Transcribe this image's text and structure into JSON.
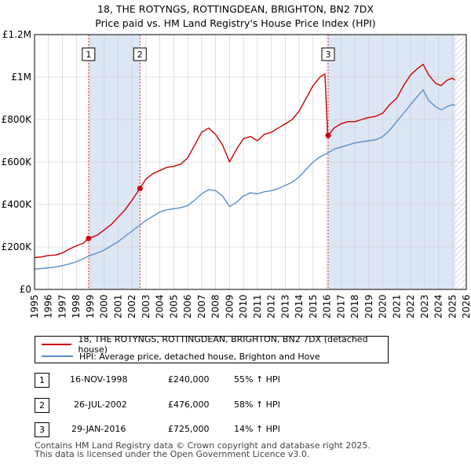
{
  "title": {
    "line1": "18, THE ROTYNGS, ROTTINGDEAN, BRIGHTON, BN2 7DX",
    "line2": "Price paid vs. HM Land Registry's House Price Index (HPI)"
  },
  "legend": {
    "property": "18, THE ROTYNGS, ROTTINGDEAN, BRIGHTON, BN2 7DX (detached house)",
    "hpi": "HPI: Average price, detached house, Brighton and Hove"
  },
  "transactions": [
    {
      "num": "1",
      "date": "16-NOV-1998",
      "price": "£240,000",
      "hpi": "55% ↑ HPI"
    },
    {
      "num": "2",
      "date": "26-JUL-2002",
      "price": "£476,000",
      "hpi": "58% ↑ HPI"
    },
    {
      "num": "3",
      "date": "29-JAN-2016",
      "price": "£725,000",
      "hpi": "14% ↑ HPI"
    }
  ],
  "footer": {
    "line1": "Contains HM Land Registry data © Crown copyright and database right 2025.",
    "line2": "This data is licensed under the Open Government Licence v3.0."
  },
  "colors": {
    "property": "#cc0000",
    "hpi": "#5b8fc7",
    "shade": "#dde6f5",
    "grid": "#cccccc"
  },
  "chart_data": {
    "type": "line",
    "title": "18, THE ROTYNGS, ROTTINGDEAN, BRIGHTON, BN2 7DX",
    "xlabel": "",
    "ylabel": "",
    "xlim": [
      1995,
      2026
    ],
    "ylim": [
      0,
      1200000
    ],
    "x_ticks": [
      1995,
      1996,
      1997,
      1998,
      1999,
      2000,
      2001,
      2002,
      2003,
      2004,
      2005,
      2006,
      2007,
      2008,
      2009,
      2010,
      2011,
      2012,
      2013,
      2014,
      2015,
      2016,
      2017,
      2018,
      2019,
      2020,
      2021,
      2022,
      2023,
      2024,
      2025,
      2026
    ],
    "y_ticks": [
      {
        "value": 0,
        "label": "£0"
      },
      {
        "value": 200000,
        "label": "£200K"
      },
      {
        "value": 400000,
        "label": "£400K"
      },
      {
        "value": 600000,
        "label": "£600K"
      },
      {
        "value": 800000,
        "label": "£800K"
      },
      {
        "value": 1000000,
        "label": "£1M"
      },
      {
        "value": 1200000,
        "label": "£1.2M"
      }
    ],
    "shaded_ranges": [
      [
        1998.88,
        2002.57
      ],
      [
        2016.08,
        2025.2
      ]
    ],
    "hatched_from": 2025.2,
    "sale_markers": [
      {
        "label": "1",
        "x": 1998.88,
        "y": 240000
      },
      {
        "label": "2",
        "x": 2002.57,
        "y": 476000
      },
      {
        "label": "3",
        "x": 2016.08,
        "y": 725000
      }
    ],
    "series": [
      {
        "name": "18, THE ROTYNGS, ROTTINGDEAN, BRIGHTON, BN2 7DX (detached house)",
        "color": "#cc0000",
        "points": [
          [
            1995.0,
            150000
          ],
          [
            1995.5,
            153000
          ],
          [
            1996.0,
            160000
          ],
          [
            1996.5,
            162000
          ],
          [
            1997.0,
            172000
          ],
          [
            1997.5,
            190000
          ],
          [
            1998.0,
            205000
          ],
          [
            1998.5,
            218000
          ],
          [
            1998.88,
            240000
          ],
          [
            1999.5,
            255000
          ],
          [
            2000.0,
            280000
          ],
          [
            2000.5,
            305000
          ],
          [
            2001.0,
            340000
          ],
          [
            2001.5,
            375000
          ],
          [
            2002.0,
            420000
          ],
          [
            2002.57,
            476000
          ],
          [
            2003.0,
            520000
          ],
          [
            2003.5,
            545000
          ],
          [
            2004.0,
            560000
          ],
          [
            2004.5,
            575000
          ],
          [
            2005.0,
            580000
          ],
          [
            2005.5,
            590000
          ],
          [
            2006.0,
            620000
          ],
          [
            2006.5,
            680000
          ],
          [
            2007.0,
            740000
          ],
          [
            2007.5,
            760000
          ],
          [
            2008.0,
            730000
          ],
          [
            2008.5,
            680000
          ],
          [
            2009.0,
            600000
          ],
          [
            2009.5,
            660000
          ],
          [
            2010.0,
            710000
          ],
          [
            2010.5,
            720000
          ],
          [
            2011.0,
            700000
          ],
          [
            2011.5,
            730000
          ],
          [
            2012.0,
            740000
          ],
          [
            2012.5,
            760000
          ],
          [
            2013.0,
            780000
          ],
          [
            2013.5,
            800000
          ],
          [
            2014.0,
            840000
          ],
          [
            2014.5,
            900000
          ],
          [
            2015.0,
            960000
          ],
          [
            2015.5,
            1000000
          ],
          [
            2015.85,
            1015000
          ],
          [
            2016.05,
            720000
          ],
          [
            2016.08,
            725000
          ],
          [
            2016.5,
            760000
          ],
          [
            2017.0,
            780000
          ],
          [
            2017.5,
            790000
          ],
          [
            2018.0,
            790000
          ],
          [
            2018.5,
            800000
          ],
          [
            2019.0,
            810000
          ],
          [
            2019.5,
            815000
          ],
          [
            2020.0,
            830000
          ],
          [
            2020.5,
            870000
          ],
          [
            2021.0,
            900000
          ],
          [
            2021.5,
            960000
          ],
          [
            2022.0,
            1010000
          ],
          [
            2022.5,
            1040000
          ],
          [
            2022.9,
            1060000
          ],
          [
            2023.3,
            1010000
          ],
          [
            2023.8,
            970000
          ],
          [
            2024.2,
            960000
          ],
          [
            2024.6,
            985000
          ],
          [
            2025.0,
            995000
          ],
          [
            2025.2,
            985000
          ]
        ]
      },
      {
        "name": "HPI: Average price, detached house, Brighton and Hove",
        "color": "#5b8fc7",
        "points": [
          [
            1995.0,
            96000
          ],
          [
            1995.5,
            98000
          ],
          [
            1996.0,
            102000
          ],
          [
            1996.5,
            106000
          ],
          [
            1997.0,
            112000
          ],
          [
            1997.5,
            120000
          ],
          [
            1998.0,
            130000
          ],
          [
            1998.5,
            145000
          ],
          [
            1999.0,
            160000
          ],
          [
            1999.5,
            172000
          ],
          [
            2000.0,
            185000
          ],
          [
            2000.5,
            205000
          ],
          [
            2001.0,
            225000
          ],
          [
            2001.5,
            250000
          ],
          [
            2002.0,
            275000
          ],
          [
            2002.5,
            300000
          ],
          [
            2003.0,
            325000
          ],
          [
            2003.5,
            345000
          ],
          [
            2004.0,
            365000
          ],
          [
            2004.5,
            375000
          ],
          [
            2005.0,
            380000
          ],
          [
            2005.5,
            385000
          ],
          [
            2006.0,
            395000
          ],
          [
            2006.5,
            420000
          ],
          [
            2007.0,
            450000
          ],
          [
            2007.5,
            470000
          ],
          [
            2008.0,
            465000
          ],
          [
            2008.5,
            440000
          ],
          [
            2009.0,
            390000
          ],
          [
            2009.5,
            410000
          ],
          [
            2010.0,
            440000
          ],
          [
            2010.5,
            455000
          ],
          [
            2011.0,
            450000
          ],
          [
            2011.5,
            460000
          ],
          [
            2012.0,
            465000
          ],
          [
            2012.5,
            475000
          ],
          [
            2013.0,
            490000
          ],
          [
            2013.5,
            505000
          ],
          [
            2014.0,
            530000
          ],
          [
            2014.5,
            565000
          ],
          [
            2015.0,
            600000
          ],
          [
            2015.5,
            625000
          ],
          [
            2016.0,
            640000
          ],
          [
            2016.5,
            660000
          ],
          [
            2017.0,
            670000
          ],
          [
            2017.5,
            680000
          ],
          [
            2018.0,
            690000
          ],
          [
            2018.5,
            695000
          ],
          [
            2019.0,
            700000
          ],
          [
            2019.5,
            705000
          ],
          [
            2020.0,
            720000
          ],
          [
            2020.5,
            750000
          ],
          [
            2021.0,
            790000
          ],
          [
            2021.5,
            830000
          ],
          [
            2022.0,
            870000
          ],
          [
            2022.5,
            910000
          ],
          [
            2022.9,
            940000
          ],
          [
            2023.3,
            890000
          ],
          [
            2023.8,
            860000
          ],
          [
            2024.2,
            845000
          ],
          [
            2024.6,
            860000
          ],
          [
            2025.0,
            870000
          ],
          [
            2025.2,
            868000
          ]
        ]
      }
    ]
  }
}
